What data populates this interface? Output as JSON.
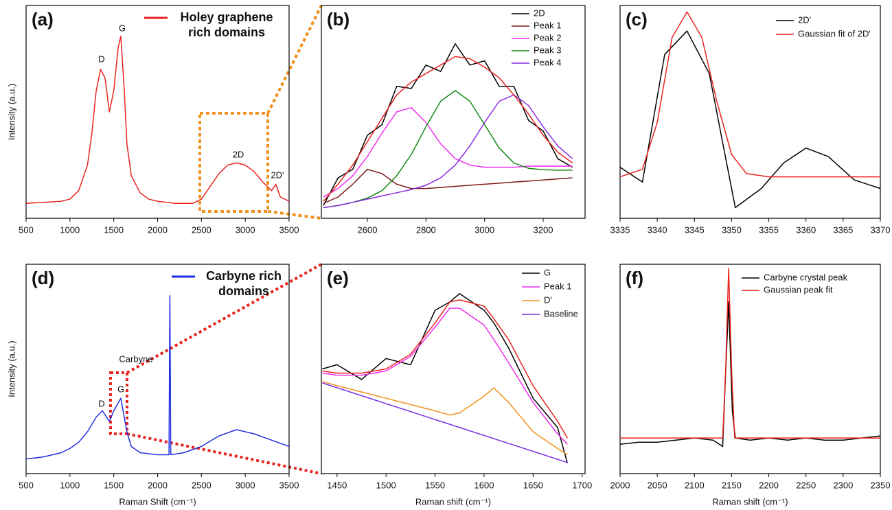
{
  "chart_data": [
    {
      "type": "line",
      "title": "(a)",
      "ylabel": "Intensity (a.u.)",
      "xlim": [
        500,
        3500
      ],
      "ylim": [
        0,
        1
      ],
      "xticks": [
        500,
        1000,
        1500,
        2000,
        2500,
        3000,
        3500
      ],
      "legend_style": "label",
      "annotations": [
        "D",
        "G",
        "2D",
        "2D'"
      ],
      "series": [
        {
          "name": "Holey graphene rich domains",
          "color": "#e8231f",
          "x": [
            500,
            700,
            900,
            1000,
            1100,
            1200,
            1250,
            1300,
            1350,
            1400,
            1450,
            1500,
            1550,
            1580,
            1620,
            1650,
            1700,
            1800,
            1900,
            2000,
            2200,
            2400,
            2500,
            2600,
            2700,
            2800,
            2900,
            3000,
            3100,
            3200,
            3300,
            3350,
            3400,
            3500
          ],
          "values": [
            0.07,
            0.075,
            0.08,
            0.09,
            0.13,
            0.25,
            0.4,
            0.6,
            0.7,
            0.66,
            0.5,
            0.6,
            0.8,
            0.855,
            0.6,
            0.35,
            0.2,
            0.12,
            0.09,
            0.08,
            0.07,
            0.07,
            0.09,
            0.15,
            0.21,
            0.25,
            0.26,
            0.25,
            0.22,
            0.17,
            0.13,
            0.16,
            0.1,
            0.08
          ]
        }
      ]
    },
    {
      "type": "line",
      "title": "(b)",
      "xlim": [
        2443,
        3343
      ],
      "ylim": [
        0,
        1
      ],
      "xticks": [
        2600,
        2800,
        3000,
        3200
      ],
      "legend_style": "box",
      "series": [
        {
          "name": "2D",
          "color": "#000000",
          "x": [
            2450,
            2500,
            2550,
            2600,
            2650,
            2700,
            2750,
            2800,
            2850,
            2900,
            2950,
            3000,
            3050,
            3100,
            3150,
            3200,
            3250,
            3300
          ],
          "values": [
            0.06,
            0.19,
            0.23,
            0.39,
            0.44,
            0.62,
            0.61,
            0.72,
            0.69,
            0.82,
            0.72,
            0.74,
            0.62,
            0.62,
            0.46,
            0.41,
            0.28,
            0.24
          ]
        },
        {
          "name": "Peak 1",
          "color": "#7b1a1a",
          "x": [
            2450,
            2500,
            2550,
            2600,
            2650,
            2700,
            2750,
            2800,
            2850,
            2900,
            2950,
            3000,
            3050,
            3100,
            3150,
            3200,
            3250,
            3300
          ],
          "values": [
            0.07,
            0.1,
            0.16,
            0.23,
            0.21,
            0.16,
            0.14,
            0.14,
            0.145,
            0.15,
            0.155,
            0.16,
            0.165,
            0.17,
            0.175,
            0.18,
            0.185,
            0.19
          ]
        },
        {
          "name": "Peak 2",
          "color": "#ee2cee",
          "x": [
            2450,
            2500,
            2550,
            2600,
            2650,
            2700,
            2750,
            2800,
            2850,
            2900,
            2950,
            3000,
            3050,
            3100,
            3150,
            3200,
            3250,
            3300
          ],
          "values": [
            0.1,
            0.14,
            0.2,
            0.29,
            0.4,
            0.5,
            0.52,
            0.45,
            0.35,
            0.28,
            0.25,
            0.24,
            0.24,
            0.24,
            0.245,
            0.245,
            0.245,
            0.245
          ]
        },
        {
          "name": "Peak 3",
          "color": "#138a13",
          "x": [
            2450,
            2500,
            2550,
            2600,
            2650,
            2700,
            2750,
            2800,
            2850,
            2900,
            2950,
            3000,
            3050,
            3100,
            3150,
            3200,
            3250,
            3300
          ],
          "values": [
            0.05,
            0.06,
            0.075,
            0.095,
            0.13,
            0.2,
            0.3,
            0.43,
            0.55,
            0.6,
            0.55,
            0.44,
            0.33,
            0.26,
            0.235,
            0.228,
            0.226,
            0.226
          ]
        },
        {
          "name": "Peak 4",
          "color": "#8a2be2",
          "x": [
            2450,
            2500,
            2550,
            2600,
            2650,
            2700,
            2750,
            2800,
            2850,
            2900,
            2950,
            3000,
            3050,
            3100,
            3150,
            3200,
            3250,
            3300
          ],
          "values": [
            0.05,
            0.06,
            0.075,
            0.09,
            0.105,
            0.12,
            0.135,
            0.155,
            0.19,
            0.25,
            0.34,
            0.45,
            0.55,
            0.58,
            0.53,
            0.43,
            0.34,
            0.28
          ]
        },
        {
          "color": "#e8231f",
          "x": [
            2450,
            2500,
            2550,
            2600,
            2650,
            2700,
            2750,
            2800,
            2850,
            2900,
            2950,
            3000,
            3050,
            3100,
            3150,
            3200,
            3250,
            3300
          ],
          "values": [
            0.08,
            0.16,
            0.25,
            0.36,
            0.47,
            0.58,
            0.64,
            0.68,
            0.72,
            0.76,
            0.75,
            0.71,
            0.66,
            0.58,
            0.49,
            0.39,
            0.31,
            0.26
          ]
        }
      ]
    },
    {
      "type": "line",
      "title": "(c)",
      "xlim": [
        3335,
        3370
      ],
      "ylim": [
        0,
        1
      ],
      "xticks": [
        3335,
        3340,
        3345,
        3350,
        3355,
        3360,
        3365,
        3370
      ],
      "legend_style": "box",
      "series": [
        {
          "name": "2D'",
          "color": "#000000",
          "x": [
            3335,
            3338,
            3341,
            3344,
            3347,
            3350.5,
            3354,
            3357,
            3360,
            3363,
            3366.5,
            3370
          ],
          "values": [
            0.24,
            0.17,
            0.77,
            0.88,
            0.68,
            0.05,
            0.14,
            0.26,
            0.33,
            0.29,
            0.18,
            0.14
          ]
        },
        {
          "name": "Gaussian fit of 2D'",
          "color": "#e8231f",
          "x": [
            3335,
            3338,
            3340,
            3342,
            3344,
            3346,
            3348,
            3350,
            3352,
            3355,
            3370
          ],
          "values": [
            0.195,
            0.23,
            0.45,
            0.85,
            0.97,
            0.85,
            0.55,
            0.3,
            0.21,
            0.195,
            0.195
          ]
        }
      ]
    },
    {
      "type": "line",
      "title": "(d)",
      "ylabel": "Intensity (a.u.)",
      "xlabel": "Raman Shift (cm⁻¹)",
      "xlim": [
        500,
        3500
      ],
      "ylim": [
        0,
        1
      ],
      "xticks": [
        500,
        1000,
        1500,
        2000,
        2500,
        3000,
        3500
      ],
      "legend_style": "label",
      "annotations": [
        "D",
        "G",
        "Carbyne"
      ],
      "series": [
        {
          "name": "Carbyne rich domains",
          "color": "#1f2fe0",
          "x": [
            500,
            700,
            900,
            1000,
            1100,
            1200,
            1300,
            1370,
            1450,
            1500,
            1580,
            1650,
            1700,
            1800,
            2000,
            2130,
            2140,
            2150,
            2300,
            2500,
            2700,
            2900,
            3100,
            3300,
            3500
          ],
          "values": [
            0.07,
            0.08,
            0.1,
            0.12,
            0.15,
            0.2,
            0.27,
            0.3,
            0.25,
            0.3,
            0.36,
            0.2,
            0.13,
            0.1,
            0.09,
            0.09,
            0.85,
            0.09,
            0.1,
            0.13,
            0.18,
            0.21,
            0.19,
            0.16,
            0.13
          ]
        }
      ]
    },
    {
      "type": "line",
      "title": "(e)",
      "xlabel": "Raman shift (cm⁻¹)",
      "xlim": [
        1434,
        1703
      ],
      "ylim": [
        0,
        1
      ],
      "xticks": [
        1450,
        1500,
        1550,
        1600,
        1650,
        1700
      ],
      "legend_style": "box",
      "series": [
        {
          "name": "G",
          "color": "#000000",
          "x": [
            1435,
            1450,
            1475,
            1500,
            1525,
            1550,
            1565,
            1575,
            1600,
            1610,
            1625,
            1650,
            1675,
            1685
          ],
          "values": [
            0.5,
            0.52,
            0.45,
            0.55,
            0.52,
            0.78,
            0.82,
            0.86,
            0.78,
            0.72,
            0.6,
            0.36,
            0.22,
            0.05
          ]
        },
        {
          "name": "Peak 1",
          "color": "#ee2cee",
          "x": [
            1435,
            1450,
            1475,
            1500,
            1525,
            1550,
            1565,
            1575,
            1600,
            1610,
            1625,
            1650,
            1675,
            1685
          ],
          "values": [
            0.48,
            0.47,
            0.47,
            0.49,
            0.56,
            0.7,
            0.79,
            0.79,
            0.71,
            0.64,
            0.53,
            0.34,
            0.19,
            0.14
          ]
        },
        {
          "name": "D'",
          "color": "#f0901e",
          "x": [
            1435,
            1450,
            1475,
            1500,
            1525,
            1550,
            1565,
            1575,
            1600,
            1610,
            1625,
            1650,
            1675,
            1685
          ],
          "values": [
            0.44,
            0.42,
            0.39,
            0.36,
            0.33,
            0.3,
            0.28,
            0.29,
            0.37,
            0.41,
            0.34,
            0.2,
            0.12,
            0.09
          ]
        },
        {
          "name": "Baseline",
          "color": "#7a2be2",
          "x": [
            1435,
            1685
          ],
          "values": [
            0.433,
            0.053
          ]
        },
        {
          "color": "#e8231f",
          "x": [
            1435,
            1450,
            1475,
            1500,
            1525,
            1550,
            1565,
            1575,
            1600,
            1610,
            1625,
            1650,
            1675,
            1685
          ],
          "values": [
            0.49,
            0.48,
            0.48,
            0.5,
            0.57,
            0.72,
            0.82,
            0.83,
            0.8,
            0.74,
            0.64,
            0.42,
            0.25,
            0.17
          ]
        }
      ]
    },
    {
      "type": "line",
      "title": "(f)",
      "xlabel": "Raman shift (cm⁻¹)",
      "xlim": [
        2000,
        2350
      ],
      "ylim": [
        0,
        1
      ],
      "xticks": [
        2000,
        2050,
        2100,
        2150,
        2200,
        2250,
        2300,
        2350
      ],
      "legend_style": "box",
      "series": [
        {
          "name": "Carbyne crystal peak",
          "color": "#000000",
          "x": [
            2000,
            2025,
            2050,
            2075,
            2100,
            2125,
            2138,
            2141,
            2146,
            2151,
            2155,
            2175,
            2200,
            2225,
            2250,
            2275,
            2300,
            2325,
            2350
          ],
          "values": [
            0.14,
            0.15,
            0.15,
            0.16,
            0.17,
            0.16,
            0.13,
            0.4,
            0.82,
            0.3,
            0.17,
            0.16,
            0.17,
            0.16,
            0.17,
            0.16,
            0.16,
            0.17,
            0.18
          ]
        },
        {
          "name": "Gaussian peak fit",
          "color": "#e8231f",
          "x": [
            2000,
            2138,
            2142,
            2146,
            2150,
            2154,
            2350
          ],
          "values": [
            0.17,
            0.17,
            0.5,
            0.98,
            0.5,
            0.17,
            0.17
          ]
        }
      ]
    }
  ]
}
